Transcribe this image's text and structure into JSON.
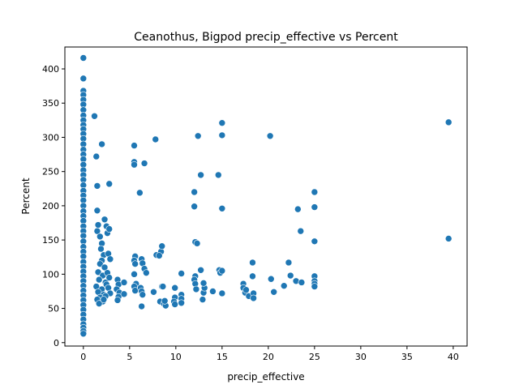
{
  "chart_data": {
    "type": "scatter",
    "title": "Ceanothus, Bigpod precip_effective vs Percent",
    "xlabel": "precip_effective",
    "ylabel": "Percent",
    "xlim": [
      -2.0,
      41.5
    ],
    "ylim": [
      -5,
      432
    ],
    "xticks": [
      0,
      5,
      10,
      15,
      20,
      25,
      30,
      35,
      40
    ],
    "yticks": [
      0,
      50,
      100,
      150,
      200,
      250,
      300,
      350,
      400
    ],
    "grid": false,
    "marker_color": "#1f77b4",
    "series": [
      {
        "points": [
          [
            0,
            416
          ],
          [
            0,
            386
          ],
          [
            0,
            368
          ],
          [
            0,
            362
          ],
          [
            0,
            355
          ],
          [
            0,
            348
          ],
          [
            0,
            340
          ],
          [
            0,
            332
          ],
          [
            0,
            325
          ],
          [
            0,
            318
          ],
          [
            0,
            312
          ],
          [
            0,
            305
          ],
          [
            0,
            298
          ],
          [
            0,
            290
          ],
          [
            0,
            282
          ],
          [
            0,
            275
          ],
          [
            0,
            268
          ],
          [
            0,
            260
          ],
          [
            0,
            252
          ],
          [
            0,
            245
          ],
          [
            0,
            238
          ],
          [
            0,
            230
          ],
          [
            0,
            222
          ],
          [
            0,
            215
          ],
          [
            0,
            208
          ],
          [
            0,
            200
          ],
          [
            0,
            192
          ],
          [
            0,
            185
          ],
          [
            0,
            178
          ],
          [
            0,
            170
          ],
          [
            0,
            163
          ],
          [
            0,
            156
          ],
          [
            0,
            148
          ],
          [
            0,
            140
          ],
          [
            0,
            133
          ],
          [
            0,
            126
          ],
          [
            0,
            118
          ],
          [
            0,
            111
          ],
          [
            0,
            104
          ],
          [
            0,
            97
          ],
          [
            0,
            90
          ],
          [
            0,
            83
          ],
          [
            0,
            76
          ],
          [
            0,
            69
          ],
          [
            0,
            62
          ],
          [
            0,
            55
          ],
          [
            0,
            48
          ],
          [
            0,
            41
          ],
          [
            0,
            34
          ],
          [
            0,
            27
          ],
          [
            0,
            22
          ],
          [
            0,
            17
          ],
          [
            0,
            13
          ],
          [
            1.2,
            331
          ],
          [
            1.4,
            272
          ],
          [
            1.5,
            229
          ],
          [
            1.5,
            193
          ],
          [
            1.6,
            172
          ],
          [
            1.5,
            163
          ],
          [
            1.8,
            155
          ],
          [
            2.0,
            145
          ],
          [
            1.9,
            137
          ],
          [
            2.2,
            128
          ],
          [
            2.0,
            120
          ],
          [
            1.8,
            115
          ],
          [
            2.3,
            110
          ],
          [
            1.6,
            103
          ],
          [
            2.1,
            98
          ],
          [
            1.7,
            92
          ],
          [
            2.4,
            88
          ],
          [
            1.4,
            82
          ],
          [
            2.0,
            78
          ],
          [
            1.6,
            74
          ],
          [
            2.2,
            70
          ],
          [
            1.8,
            66
          ],
          [
            1.5,
            63
          ],
          [
            2.1,
            60
          ],
          [
            1.7,
            57
          ],
          [
            2.0,
            290
          ],
          [
            2.3,
            180
          ],
          [
            2.5,
            170
          ],
          [
            2.6,
            160
          ],
          [
            2.8,
            232
          ],
          [
            2.8,
            166
          ],
          [
            2.7,
            130
          ],
          [
            2.9,
            122
          ],
          [
            2.6,
            102
          ],
          [
            2.8,
            95
          ],
          [
            2.5,
            85
          ],
          [
            2.7,
            80
          ],
          [
            2.9,
            72
          ],
          [
            2.4,
            68
          ],
          [
            2.2,
            63
          ],
          [
            3.7,
            92
          ],
          [
            3.8,
            85
          ],
          [
            3.6,
            78
          ],
          [
            3.9,
            73
          ],
          [
            3.8,
            67
          ],
          [
            3.7,
            62
          ],
          [
            4.4,
            88
          ],
          [
            4.4,
            71
          ],
          [
            5.5,
            288
          ],
          [
            5.5,
            264
          ],
          [
            5.5,
            260
          ],
          [
            5.6,
            126
          ],
          [
            5.5,
            120
          ],
          [
            5.6,
            115
          ],
          [
            5.5,
            100
          ],
          [
            5.7,
            86
          ],
          [
            5.5,
            82
          ],
          [
            5.6,
            76
          ],
          [
            6.1,
            219
          ],
          [
            6.6,
            262
          ],
          [
            6.3,
            122
          ],
          [
            6.4,
            116
          ],
          [
            6.6,
            108
          ],
          [
            6.8,
            102
          ],
          [
            6.2,
            80
          ],
          [
            6.3,
            75
          ],
          [
            6.4,
            70
          ],
          [
            6.3,
            53
          ],
          [
            7.6,
            74
          ],
          [
            7.8,
            297
          ],
          [
            7.9,
            128
          ],
          [
            8.4,
            133
          ],
          [
            8.5,
            141
          ],
          [
            8.2,
            127
          ],
          [
            8.5,
            82
          ],
          [
            8.6,
            82
          ],
          [
            8.3,
            60
          ],
          [
            8.7,
            57
          ],
          [
            8.9,
            54
          ],
          [
            8.8,
            61
          ],
          [
            9.9,
            80
          ],
          [
            9.9,
            66
          ],
          [
            9.8,
            60
          ],
          [
            9.9,
            56
          ],
          [
            10.6,
            101
          ],
          [
            10.6,
            70
          ],
          [
            10.6,
            64
          ],
          [
            10.6,
            58
          ],
          [
            12.0,
            220
          ],
          [
            12.0,
            199
          ],
          [
            12.1,
            147
          ],
          [
            12.3,
            145
          ],
          [
            12.1,
            97
          ],
          [
            12.0,
            92
          ],
          [
            12.1,
            86
          ],
          [
            12.2,
            78
          ],
          [
            12.4,
            302
          ],
          [
            12.7,
            245
          ],
          [
            12.7,
            106
          ],
          [
            12.9,
            63
          ],
          [
            13.0,
            73
          ],
          [
            13.1,
            80
          ],
          [
            13.0,
            87
          ],
          [
            14.0,
            75
          ],
          [
            14.6,
            245
          ],
          [
            14.7,
            106
          ],
          [
            14.8,
            102
          ],
          [
            15.0,
            321
          ],
          [
            15.0,
            303
          ],
          [
            15.0,
            196
          ],
          [
            15.0,
            105
          ],
          [
            15.0,
            72
          ],
          [
            17.3,
            86
          ],
          [
            17.3,
            80
          ],
          [
            17.5,
            73
          ],
          [
            17.6,
            77
          ],
          [
            17.9,
            68
          ],
          [
            18.3,
            117
          ],
          [
            18.3,
            97
          ],
          [
            18.4,
            72
          ],
          [
            18.4,
            65
          ],
          [
            20.2,
            302
          ],
          [
            20.3,
            93
          ],
          [
            20.6,
            74
          ],
          [
            21.7,
            83
          ],
          [
            22.2,
            117
          ],
          [
            22.4,
            98
          ],
          [
            23.0,
            90
          ],
          [
            23.2,
            195
          ],
          [
            23.5,
            163
          ],
          [
            23.6,
            88
          ],
          [
            25.0,
            220
          ],
          [
            25.0,
            198
          ],
          [
            25.0,
            148
          ],
          [
            25.0,
            97
          ],
          [
            25.0,
            90
          ],
          [
            25.0,
            86
          ],
          [
            25.0,
            82
          ],
          [
            39.5,
            322
          ],
          [
            39.5,
            152
          ]
        ]
      }
    ]
  }
}
